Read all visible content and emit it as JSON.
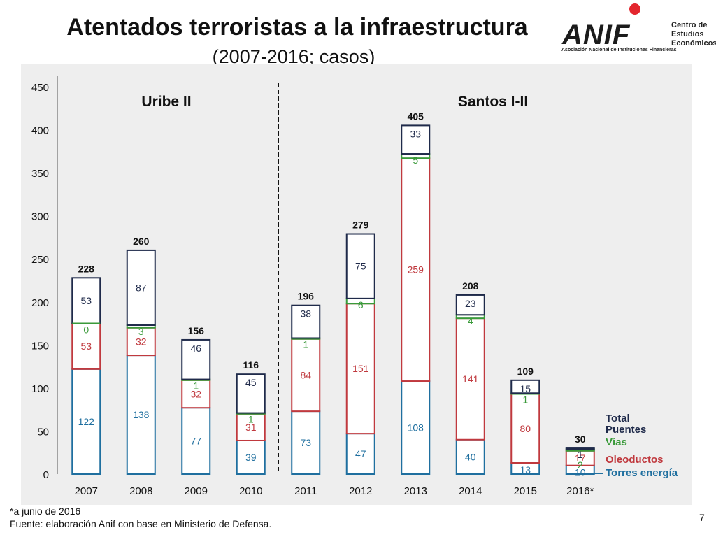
{
  "header": {
    "title": "Atentados terroristas a la infraestructura",
    "subtitle": "(2007-2016; casos)"
  },
  "logo": {
    "name": "ANIF",
    "center_lines": [
      "Centro de",
      "Estudios",
      "Económicos"
    ],
    "tagline": "Asociación Nacional de Instituciones Financieras"
  },
  "chart_data": {
    "type": "bar",
    "stacked": true,
    "categories": [
      "2007",
      "2008",
      "2009",
      "2010",
      "2011",
      "2012",
      "2013",
      "2014",
      "2015",
      "2016*"
    ],
    "series": [
      {
        "name": "Torres energía",
        "color": "#1f6f9f",
        "values": [
          122,
          138,
          77,
          39,
          73,
          47,
          108,
          40,
          13,
          10
        ]
      },
      {
        "name": "Oleoductos",
        "color": "#c0393e",
        "values": [
          53,
          32,
          32,
          31,
          84,
          151,
          259,
          141,
          80,
          17
        ]
      },
      {
        "name": "Vías",
        "color": "#3a9a3a",
        "values": [
          0,
          3,
          1,
          1,
          1,
          6,
          5,
          4,
          1,
          2
        ]
      },
      {
        "name": "Puentes",
        "color": "#1f2a4a",
        "values": [
          53,
          87,
          46,
          45,
          38,
          75,
          33,
          23,
          15,
          1
        ]
      }
    ],
    "totals": [
      228,
      260,
      156,
      116,
      196,
      279,
      405,
      208,
      109,
      30
    ],
    "ylim": [
      0,
      450
    ],
    "yticks": [
      0,
      50,
      100,
      150,
      200,
      250,
      300,
      350,
      400,
      450
    ],
    "periods": [
      "Uribe II",
      "Santos I-II"
    ],
    "legend_total_label": "Total",
    "legend_position": "right"
  },
  "footnote": {
    "note": "*a junio de 2016",
    "source": "Fuente: elaboración Anif con base en Ministerio de Defensa."
  },
  "page_number": "7"
}
